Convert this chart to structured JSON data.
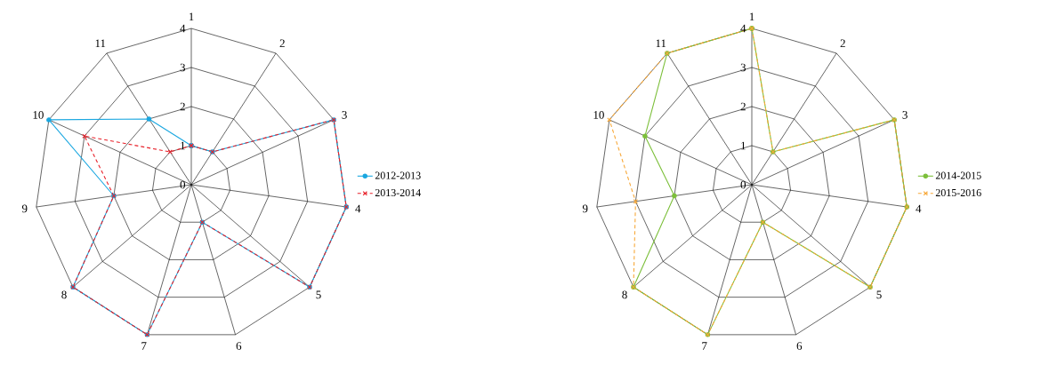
{
  "chart_data": [
    {
      "type": "radar",
      "categories": [
        "1",
        "2",
        "3",
        "4",
        "5",
        "6",
        "7",
        "8",
        "9",
        "10",
        "11"
      ],
      "ylim": [
        0,
        4
      ],
      "yticks": [
        0,
        1,
        2,
        3,
        4
      ],
      "grid": true,
      "legend": "right",
      "series": [
        {
          "name": "2012-2013",
          "color": "#1aa7e0",
          "marker": "circle",
          "line_style": "solid",
          "values": [
            1,
            1,
            4,
            4,
            4,
            1,
            4,
            4,
            2,
            4,
            2
          ]
        },
        {
          "name": "2013-2014",
          "color": "#e8212a",
          "marker": "cross",
          "line_style": "dashed",
          "values": [
            1,
            1,
            4,
            4,
            4,
            1,
            4,
            4,
            2,
            3,
            1
          ]
        }
      ]
    },
    {
      "type": "radar",
      "categories": [
        "1",
        "2",
        "3",
        "4",
        "5",
        "6",
        "7",
        "8",
        "9",
        "10",
        "11"
      ],
      "ylim": [
        0,
        4
      ],
      "yticks": [
        0,
        1,
        2,
        3,
        4
      ],
      "grid": true,
      "legend": "right",
      "series": [
        {
          "name": "2014-2015",
          "color": "#7cbf3a",
          "marker": "circle",
          "line_style": "solid",
          "values": [
            4,
            1,
            4,
            4,
            4,
            1,
            4,
            4,
            2,
            3,
            4
          ]
        },
        {
          "name": "2015-2016",
          "color": "#f7a839",
          "marker": "cross",
          "line_style": "dashed",
          "values": [
            4,
            1,
            4,
            4,
            4,
            1,
            4,
            4,
            3,
            4,
            4
          ]
        }
      ]
    }
  ]
}
